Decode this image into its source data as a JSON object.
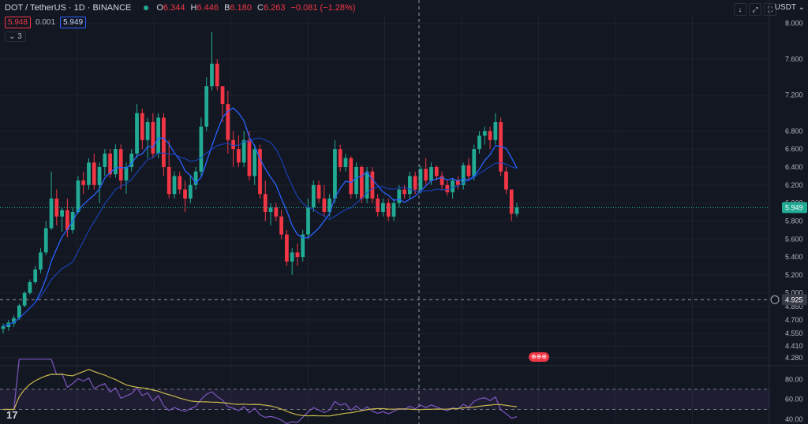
{
  "header": {
    "symbol": "DOT / TetherUS · 1D · BINANCE",
    "o_label": "O",
    "o_value": "6.344",
    "h_label": "H",
    "h_value": "6.446",
    "l_label": "B",
    "l_value": "6.180",
    "c_label": "C",
    "c_value": "6.263",
    "change": "−0.081 (−1.28%)",
    "sell_price": "5.948",
    "spread": "0.001",
    "buy_price": "5.949",
    "indicators_count": "3"
  },
  "toolbar": {
    "currency": "USDT",
    "btn1": "↓",
    "btn2": "⤢",
    "btn3": "⛶"
  },
  "logo_text": "17",
  "marker_text": "⊕⊕⊕",
  "colors": {
    "up": "#22ab94",
    "down": "#f23645",
    "ma": "#2962ff",
    "rsi": "#7e57c2",
    "rsi_ma": "#c9b94c",
    "bg": "#131722"
  },
  "chart_data": {
    "type": "candlestick",
    "y_ticks": [
      "8.000",
      "7.600",
      "7.200",
      "6.800",
      "6.600",
      "6.400",
      "6.200",
      "6.000",
      "5.800",
      "5.600",
      "5.400",
      "5.200",
      "5.000",
      "4.850",
      "4.700",
      "4.550",
      "4.410",
      "4.280"
    ],
    "y_tick_values": [
      8.0,
      7.6,
      7.2,
      6.8,
      6.6,
      6.4,
      6.2,
      6.0,
      5.8,
      5.6,
      5.4,
      5.2,
      5.0,
      4.85,
      4.7,
      4.55,
      4.41,
      4.28
    ],
    "ylim": [
      4.2,
      8.1
    ],
    "current_price": {
      "label": "5.949",
      "value": 5.949
    },
    "crosshair_price": {
      "label": "4.925",
      "value": 4.925
    },
    "candles": [
      {
        "o": 4.6,
        "h": 4.66,
        "l": 4.55,
        "c": 4.63
      },
      {
        "o": 4.62,
        "h": 4.7,
        "l": 4.58,
        "c": 4.67
      },
      {
        "o": 4.66,
        "h": 4.75,
        "l": 4.62,
        "c": 4.72
      },
      {
        "o": 4.72,
        "h": 4.88,
        "l": 4.7,
        "c": 4.86
      },
      {
        "o": 4.86,
        "h": 5.02,
        "l": 4.84,
        "c": 5.0
      },
      {
        "o": 5.0,
        "h": 5.15,
        "l": 4.98,
        "c": 5.12
      },
      {
        "o": 5.12,
        "h": 5.3,
        "l": 5.1,
        "c": 5.26
      },
      {
        "o": 5.26,
        "h": 5.5,
        "l": 5.22,
        "c": 5.45
      },
      {
        "o": 5.45,
        "h": 5.8,
        "l": 5.42,
        "c": 5.72
      },
      {
        "o": 5.72,
        "h": 6.35,
        "l": 5.7,
        "c": 6.05
      },
      {
        "o": 6.05,
        "h": 6.15,
        "l": 5.75,
        "c": 5.85
      },
      {
        "o": 5.85,
        "h": 5.95,
        "l": 5.68,
        "c": 5.92
      },
      {
        "o": 5.92,
        "h": 6.05,
        "l": 5.62,
        "c": 5.7
      },
      {
        "o": 5.7,
        "h": 5.95,
        "l": 5.66,
        "c": 5.9
      },
      {
        "o": 5.9,
        "h": 6.3,
        "l": 5.88,
        "c": 6.25
      },
      {
        "o": 6.25,
        "h": 6.35,
        "l": 6.1,
        "c": 6.2
      },
      {
        "o": 6.2,
        "h": 6.5,
        "l": 6.15,
        "c": 6.45
      },
      {
        "o": 6.45,
        "h": 6.55,
        "l": 6.15,
        "c": 6.2
      },
      {
        "o": 6.2,
        "h": 6.45,
        "l": 6.0,
        "c": 6.4
      },
      {
        "o": 6.4,
        "h": 6.6,
        "l": 6.3,
        "c": 6.55
      },
      {
        "o": 6.55,
        "h": 6.6,
        "l": 6.28,
        "c": 6.32
      },
      {
        "o": 6.32,
        "h": 6.65,
        "l": 6.28,
        "c": 6.6
      },
      {
        "o": 6.6,
        "h": 6.65,
        "l": 6.15,
        "c": 6.25
      },
      {
        "o": 6.25,
        "h": 6.45,
        "l": 6.1,
        "c": 6.4
      },
      {
        "o": 6.4,
        "h": 6.6,
        "l": 6.35,
        "c": 6.55
      },
      {
        "o": 6.55,
        "h": 7.1,
        "l": 6.5,
        "c": 7.0
      },
      {
        "o": 7.0,
        "h": 7.05,
        "l": 6.6,
        "c": 6.7
      },
      {
        "o": 6.7,
        "h": 6.95,
        "l": 6.5,
        "c": 6.9
      },
      {
        "o": 6.9,
        "h": 7.0,
        "l": 6.5,
        "c": 6.55
      },
      {
        "o": 6.55,
        "h": 7.0,
        "l": 6.5,
        "c": 6.95
      },
      {
        "o": 6.95,
        "h": 7.0,
        "l": 6.3,
        "c": 6.4
      },
      {
        "o": 6.4,
        "h": 6.7,
        "l": 6.05,
        "c": 6.1
      },
      {
        "o": 6.1,
        "h": 6.35,
        "l": 6.05,
        "c": 6.3
      },
      {
        "o": 6.3,
        "h": 6.35,
        "l": 6.1,
        "c": 6.15
      },
      {
        "o": 6.15,
        "h": 6.25,
        "l": 5.9,
        "c": 6.05
      },
      {
        "o": 6.05,
        "h": 6.3,
        "l": 6.0,
        "c": 6.2
      },
      {
        "o": 6.2,
        "h": 6.4,
        "l": 6.15,
        "c": 6.35
      },
      {
        "o": 6.35,
        "h": 6.95,
        "l": 6.3,
        "c": 6.85
      },
      {
        "o": 6.85,
        "h": 7.4,
        "l": 6.8,
        "c": 7.3
      },
      {
        "o": 7.3,
        "h": 7.9,
        "l": 7.25,
        "c": 7.55
      },
      {
        "o": 7.55,
        "h": 7.6,
        "l": 7.25,
        "c": 7.3
      },
      {
        "o": 7.3,
        "h": 7.3,
        "l": 6.9,
        "c": 7.1
      },
      {
        "o": 7.1,
        "h": 7.25,
        "l": 6.55,
        "c": 6.7
      },
      {
        "o": 6.7,
        "h": 6.8,
        "l": 6.4,
        "c": 6.6
      },
      {
        "o": 6.6,
        "h": 6.75,
        "l": 6.4,
        "c": 6.45
      },
      {
        "o": 6.45,
        "h": 6.8,
        "l": 6.4,
        "c": 6.7
      },
      {
        "o": 6.7,
        "h": 6.8,
        "l": 6.25,
        "c": 6.3
      },
      {
        "o": 6.3,
        "h": 6.65,
        "l": 6.2,
        "c": 6.6
      },
      {
        "o": 6.6,
        "h": 6.65,
        "l": 6.05,
        "c": 6.1
      },
      {
        "o": 6.1,
        "h": 6.25,
        "l": 5.8,
        "c": 5.9
      },
      {
        "o": 5.9,
        "h": 6.0,
        "l": 5.75,
        "c": 5.95
      },
      {
        "o": 5.95,
        "h": 6.0,
        "l": 5.8,
        "c": 5.85
      },
      {
        "o": 5.85,
        "h": 5.92,
        "l": 5.6,
        "c": 5.65
      },
      {
        "o": 5.65,
        "h": 5.7,
        "l": 5.3,
        "c": 5.35
      },
      {
        "o": 5.35,
        "h": 5.5,
        "l": 5.2,
        "c": 5.45
      },
      {
        "o": 5.45,
        "h": 5.55,
        "l": 5.3,
        "c": 5.4
      },
      {
        "o": 5.4,
        "h": 5.7,
        "l": 5.35,
        "c": 5.65
      },
      {
        "o": 5.65,
        "h": 6.05,
        "l": 5.6,
        "c": 5.95
      },
      {
        "o": 5.95,
        "h": 6.25,
        "l": 5.9,
        "c": 6.2
      },
      {
        "o": 6.2,
        "h": 6.25,
        "l": 6.0,
        "c": 6.05
      },
      {
        "o": 6.05,
        "h": 6.2,
        "l": 5.85,
        "c": 5.9
      },
      {
        "o": 5.9,
        "h": 6.1,
        "l": 5.85,
        "c": 6.05
      },
      {
        "o": 6.05,
        "h": 6.7,
        "l": 6.0,
        "c": 6.6
      },
      {
        "o": 6.6,
        "h": 6.65,
        "l": 6.35,
        "c": 6.4
      },
      {
        "o": 6.4,
        "h": 6.55,
        "l": 6.35,
        "c": 6.5
      },
      {
        "o": 6.5,
        "h": 6.52,
        "l": 6.05,
        "c": 6.1
      },
      {
        "o": 6.1,
        "h": 6.45,
        "l": 6.05,
        "c": 6.4
      },
      {
        "o": 6.4,
        "h": 6.42,
        "l": 6.0,
        "c": 6.05
      },
      {
        "o": 6.05,
        "h": 6.4,
        "l": 6.0,
        "c": 6.35
      },
      {
        "o": 6.35,
        "h": 6.4,
        "l": 6.0,
        "c": 6.05
      },
      {
        "o": 6.05,
        "h": 6.1,
        "l": 5.85,
        "c": 5.9
      },
      {
        "o": 5.9,
        "h": 6.05,
        "l": 5.85,
        "c": 6.0
      },
      {
        "o": 6.0,
        "h": 6.05,
        "l": 5.8,
        "c": 5.85
      },
      {
        "o": 5.85,
        "h": 6.05,
        "l": 5.8,
        "c": 6.0
      },
      {
        "o": 6.0,
        "h": 6.2,
        "l": 5.95,
        "c": 6.15
      },
      {
        "o": 6.15,
        "h": 6.2,
        "l": 6.05,
        "c": 6.1
      },
      {
        "o": 6.1,
        "h": 6.35,
        "l": 6.05,
        "c": 6.3
      },
      {
        "o": 6.3,
        "h": 6.35,
        "l": 6.1,
        "c": 6.15
      },
      {
        "o": 6.15,
        "h": 6.42,
        "l": 6.1,
        "c": 6.38
      },
      {
        "o": 6.38,
        "h": 6.5,
        "l": 6.2,
        "c": 6.25
      },
      {
        "o": 6.25,
        "h": 6.45,
        "l": 6.2,
        "c": 6.4
      },
      {
        "o": 6.4,
        "h": 6.42,
        "l": 6.25,
        "c": 6.3
      },
      {
        "o": 6.3,
        "h": 6.35,
        "l": 6.15,
        "c": 6.2
      },
      {
        "o": 6.2,
        "h": 6.25,
        "l": 6.08,
        "c": 6.12
      },
      {
        "o": 6.12,
        "h": 6.28,
        "l": 6.05,
        "c": 6.25
      },
      {
        "o": 6.25,
        "h": 6.3,
        "l": 6.15,
        "c": 6.2
      },
      {
        "o": 6.2,
        "h": 6.45,
        "l": 6.15,
        "c": 6.42
      },
      {
        "o": 6.42,
        "h": 6.5,
        "l": 6.25,
        "c": 6.3
      },
      {
        "o": 6.3,
        "h": 6.65,
        "l": 6.25,
        "c": 6.6
      },
      {
        "o": 6.6,
        "h": 6.8,
        "l": 6.55,
        "c": 6.75
      },
      {
        "o": 6.75,
        "h": 6.85,
        "l": 6.65,
        "c": 6.8
      },
      {
        "o": 6.8,
        "h": 6.85,
        "l": 6.6,
        "c": 6.7
      },
      {
        "o": 6.7,
        "h": 7.0,
        "l": 6.65,
        "c": 6.9
      },
      {
        "o": 6.9,
        "h": 6.95,
        "l": 6.3,
        "c": 6.35
      },
      {
        "o": 6.35,
        "h": 6.4,
        "l": 6.1,
        "c": 6.15
      },
      {
        "o": 6.15,
        "h": 6.15,
        "l": 5.8,
        "c": 5.88
      },
      {
        "o": 5.88,
        "h": 6.0,
        "l": 5.85,
        "c": 5.95
      }
    ],
    "rsi_panel": {
      "y_ticks": [
        "80.00",
        "60.00",
        "40.00"
      ],
      "y_tick_values": [
        80,
        60,
        40
      ],
      "ylim": [
        37,
        92
      ],
      "band": [
        50,
        70
      ]
    }
  }
}
